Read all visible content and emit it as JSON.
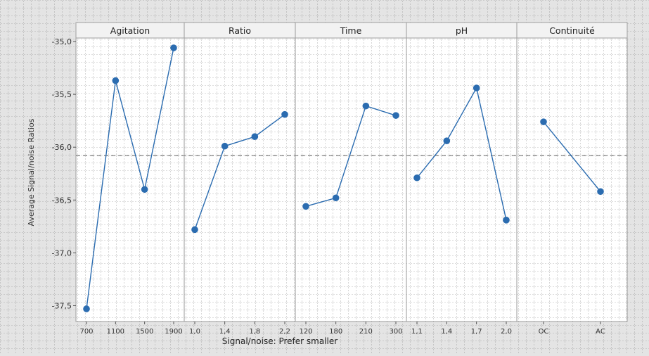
{
  "chart_data": {
    "type": "line",
    "ylabel": "Average Signal/noise Ratios",
    "xlabel": "Signal/noise: Prefer smaller",
    "ylim": [
      -37.65,
      -34.82
    ],
    "yticks": [
      -35.0,
      -35.5,
      -36.0,
      -36.5,
      -37.0,
      -37.5
    ],
    "ytick_labels": [
      "-35,0",
      "-35,5",
      "-36,0",
      "-36,5",
      "-37,0",
      "-37,5"
    ],
    "reference_line": -36.08,
    "grid": true,
    "line_color": "#2b6cb0",
    "panels": [
      {
        "name": "Agitation",
        "categories": [
          "700",
          "1100",
          "1500",
          "1900"
        ],
        "values": [
          -37.53,
          -35.37,
          -36.4,
          -35.06
        ]
      },
      {
        "name": "Ratio",
        "categories": [
          "1,0",
          "1,4",
          "1,8",
          "2,2"
        ],
        "values": [
          -36.78,
          -35.99,
          -35.9,
          -35.69
        ]
      },
      {
        "name": "Time",
        "categories": [
          "120",
          "180",
          "210",
          "300"
        ],
        "values": [
          -36.56,
          -36.48,
          -35.61,
          -35.7
        ]
      },
      {
        "name": "pH",
        "categories": [
          "1,1",
          "1,4",
          "1,7",
          "2,0"
        ],
        "values": [
          -36.29,
          -35.94,
          -35.44,
          -36.69
        ]
      },
      {
        "name": "Continuité",
        "categories": [
          "OC",
          "AC"
        ],
        "values": [
          -35.76,
          -36.42
        ]
      }
    ]
  }
}
